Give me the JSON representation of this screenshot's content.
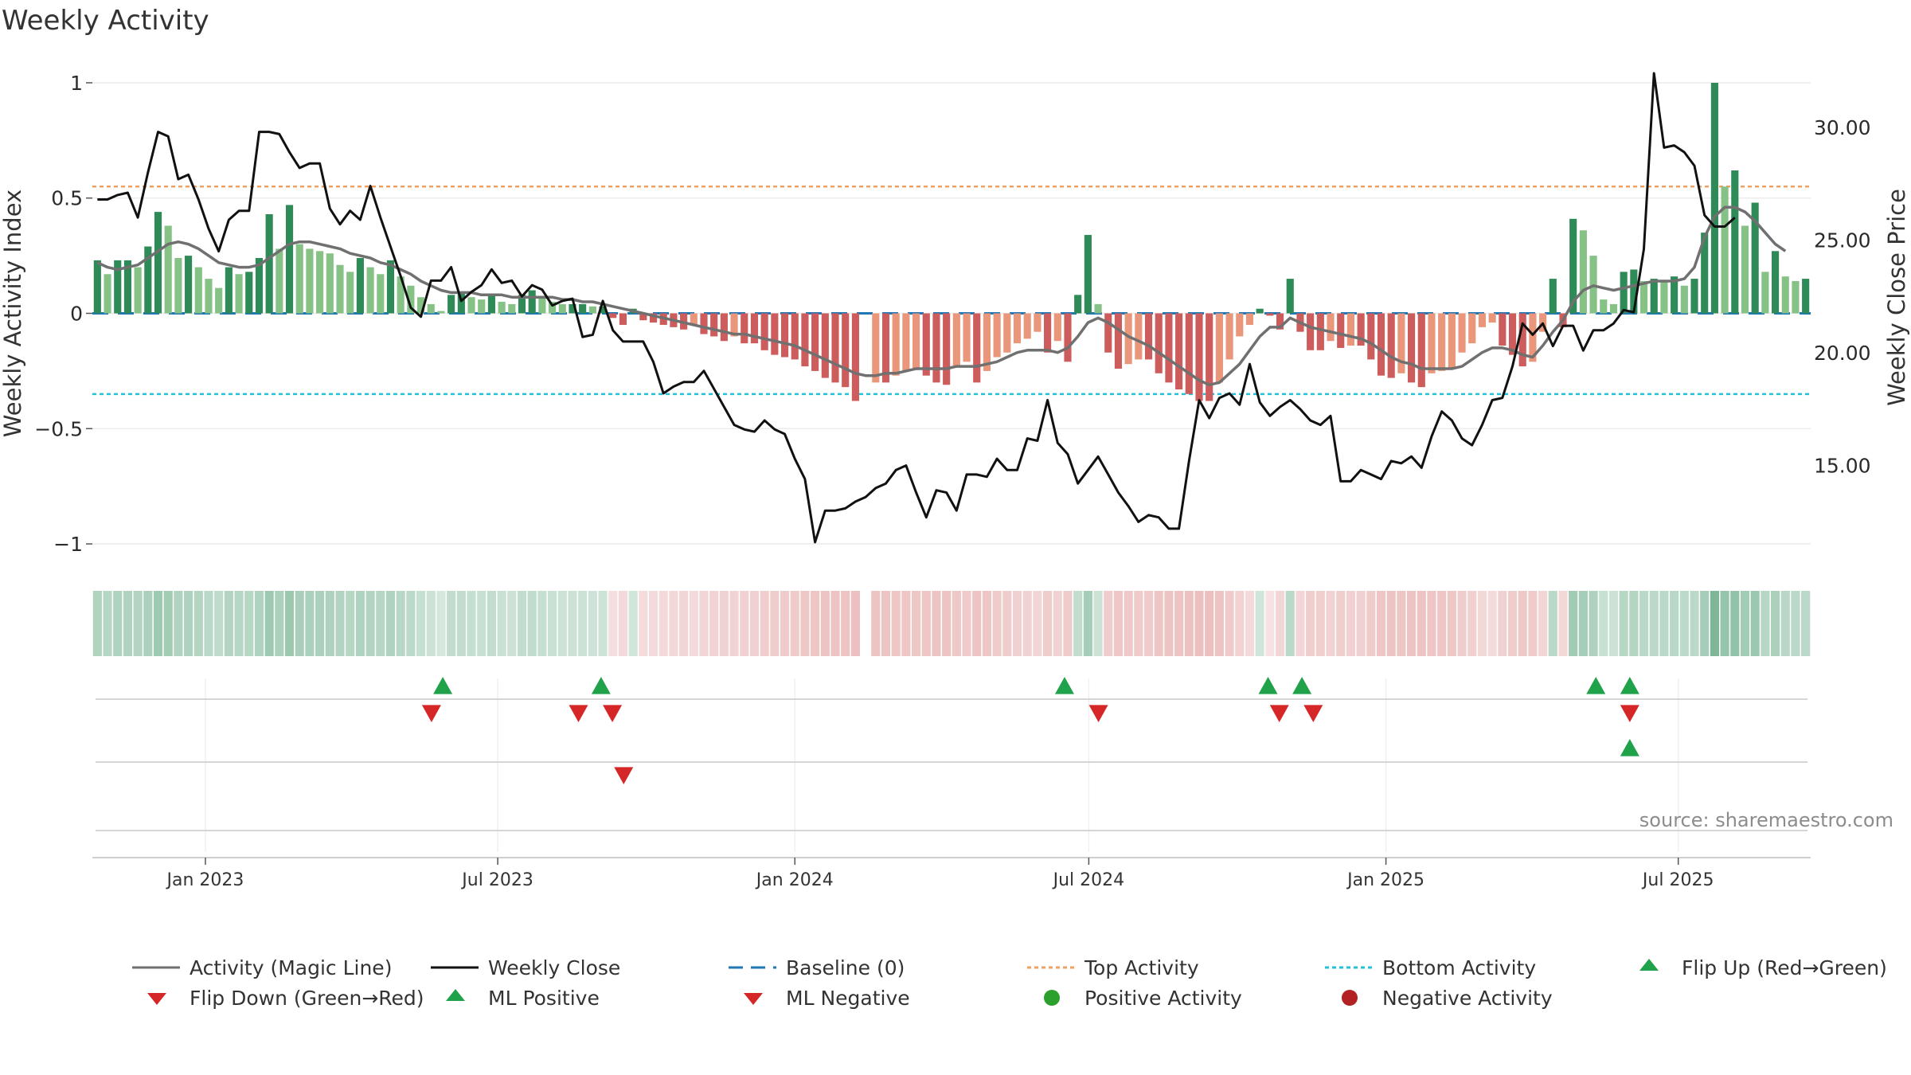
{
  "title": "Weekly Activity",
  "source": "source: sharemaestro.com",
  "colors": {
    "dark_green": "#2e8b57",
    "light_green": "#86c286",
    "dark_red": "#cd5c5c",
    "light_red": "#e9967a",
    "magic_line": "#707070",
    "close_line": "#111111",
    "baseline": "#1f77b4",
    "top_line": "#f0a060",
    "bottom_line": "#22c3d8",
    "flip_up": "#1fa24a",
    "flip_down": "#d62728",
    "pos_dot": "#2ca02c",
    "neg_dot": "#b22222"
  },
  "legend": {
    "items": [
      {
        "label": "Activity (Magic Line)",
        "symbol": "solid-gray-line"
      },
      {
        "label": "Weekly Close",
        "symbol": "solid-black-line"
      },
      {
        "label": "Baseline (0)",
        "symbol": "dashed-blue-line"
      },
      {
        "label": "Top Activity",
        "symbol": "dotted-orange-line"
      },
      {
        "label": "Bottom Activity",
        "symbol": "dotted-cyan-line"
      },
      {
        "label": "Flip Up (Red→Green)",
        "symbol": "green-up-triangle"
      },
      {
        "label": "Flip Down (Green→Red)",
        "symbol": "red-down-triangle"
      },
      {
        "label": "ML Positive",
        "symbol": "green-up-triangle"
      },
      {
        "label": "ML Negative",
        "symbol": "red-down-triangle"
      },
      {
        "label": "Positive Activity",
        "symbol": "green-dot"
      },
      {
        "label": "Negative Activity",
        "symbol": "red-dot"
      }
    ]
  },
  "chart_data": {
    "type": "bar",
    "title": "Weekly Activity",
    "ylabel": "Weekly Activity Index",
    "y2label": "Weekly Close Price",
    "ylim": [
      -1.1,
      1.1
    ],
    "y2lim": [
      10.5,
      33.0
    ],
    "yticks": [
      1,
      0.5,
      0,
      -0.5,
      -1
    ],
    "ytick_labels": [
      "1",
      "0.5",
      "0",
      "−0.5",
      "−1"
    ],
    "y2ticks": [
      30,
      25,
      20,
      15
    ],
    "y2tick_labels": [
      "30.00",
      "25.00",
      "20.00",
      "15.00"
    ],
    "x_date_range": [
      "2022-10-23",
      "2025-09-21"
    ],
    "xticks": [
      {
        "label": "Jan 2023",
        "date": "2023-01-01"
      },
      {
        "label": "Jul 2023",
        "date": "2023-07-01"
      },
      {
        "label": "Jan 2024",
        "date": "2024-01-01"
      },
      {
        "label": "Jul 2024",
        "date": "2024-07-01"
      },
      {
        "label": "Jan 2025",
        "date": "2025-01-01"
      },
      {
        "label": "Jul 2025",
        "date": "2025-07-01"
      }
    ],
    "top_activity": 0.55,
    "bottom_activity": -0.35,
    "baseline": 0,
    "series": [
      {
        "name": "Weekly Activity Index",
        "kind": "bars",
        "values": [
          0.23,
          0.17,
          0.23,
          0.23,
          0.2,
          0.29,
          0.44,
          0.38,
          0.24,
          0.25,
          0.2,
          0.15,
          0.11,
          0.2,
          0.17,
          0.18,
          0.24,
          0.43,
          0.28,
          0.47,
          0.3,
          0.28,
          0.27,
          0.26,
          0.21,
          0.18,
          0.24,
          0.2,
          0.17,
          0.23,
          0.16,
          0.12,
          0.07,
          0.04,
          0.01,
          0.08,
          0.09,
          0.07,
          0.06,
          0.08,
          0.05,
          0.04,
          0.08,
          0.1,
          0.07,
          0.05,
          0.04,
          0.04,
          0.04,
          0.03,
          0.03,
          -0.02,
          -0.05,
          0.02,
          -0.03,
          -0.04,
          -0.05,
          -0.06,
          -0.07,
          -0.05,
          -0.09,
          -0.1,
          -0.12,
          -0.1,
          -0.13,
          -0.13,
          -0.16,
          -0.18,
          -0.19,
          -0.2,
          -0.23,
          -0.25,
          -0.28,
          -0.3,
          -0.32,
          -0.38,
          null,
          -0.3,
          -0.3,
          -0.27,
          -0.25,
          -0.24,
          -0.27,
          -0.3,
          -0.31,
          -0.23,
          -0.21,
          -0.3,
          -0.25,
          -0.19,
          -0.17,
          -0.13,
          -0.11,
          -0.08,
          -0.17,
          -0.12,
          -0.21,
          0.08,
          0.34,
          0.04,
          -0.17,
          -0.24,
          -0.22,
          -0.2,
          -0.2,
          -0.26,
          -0.3,
          -0.33,
          -0.35,
          -0.38,
          -0.38,
          -0.3,
          -0.2,
          -0.1,
          -0.05,
          0.02,
          -0.01,
          -0.07,
          0.15,
          -0.08,
          -0.16,
          -0.16,
          -0.12,
          -0.15,
          -0.14,
          -0.14,
          -0.2,
          -0.27,
          -0.28,
          -0.26,
          -0.3,
          -0.32,
          -0.26,
          -0.25,
          -0.24,
          -0.17,
          -0.13,
          -0.06,
          -0.04,
          -0.14,
          -0.18,
          -0.23,
          -0.21,
          -0.08,
          0.15,
          -0.06,
          0.41,
          0.36,
          0.25,
          0.06,
          0.04,
          0.18,
          0.19,
          0.14,
          0.15,
          0.14,
          0.16,
          0.12,
          0.15,
          0.35,
          1.0,
          0.55,
          0.62,
          0.38,
          0.48,
          0.18,
          0.27,
          0.16,
          0.14,
          0.15
        ]
      },
      {
        "name": "Activity (Magic Line)",
        "kind": "line",
        "values": [
          0.22,
          0.2,
          0.19,
          0.2,
          0.21,
          0.24,
          0.27,
          0.3,
          0.31,
          0.3,
          0.28,
          0.25,
          0.22,
          0.21,
          0.2,
          0.2,
          0.21,
          0.24,
          0.27,
          0.3,
          0.31,
          0.31,
          0.3,
          0.29,
          0.28,
          0.26,
          0.25,
          0.24,
          0.22,
          0.21,
          0.19,
          0.17,
          0.14,
          0.12,
          0.1,
          0.09,
          0.09,
          0.09,
          0.08,
          0.08,
          0.08,
          0.07,
          0.07,
          0.07,
          0.07,
          0.07,
          0.06,
          0.06,
          0.05,
          0.05,
          0.04,
          0.03,
          0.02,
          0.01,
          0.0,
          -0.01,
          -0.02,
          -0.03,
          -0.04,
          -0.05,
          -0.06,
          -0.07,
          -0.08,
          -0.09,
          -0.09,
          -0.1,
          -0.11,
          -0.12,
          -0.13,
          -0.14,
          -0.16,
          -0.18,
          -0.2,
          -0.22,
          -0.24,
          -0.26,
          -0.27,
          -0.27,
          -0.26,
          -0.26,
          -0.25,
          -0.24,
          -0.24,
          -0.24,
          -0.24,
          -0.23,
          -0.23,
          -0.23,
          -0.22,
          -0.21,
          -0.19,
          -0.17,
          -0.16,
          -0.16,
          -0.16,
          -0.17,
          -0.15,
          -0.1,
          -0.04,
          -0.02,
          -0.04,
          -0.07,
          -0.1,
          -0.12,
          -0.14,
          -0.17,
          -0.2,
          -0.23,
          -0.26,
          -0.29,
          -0.31,
          -0.3,
          -0.26,
          -0.22,
          -0.16,
          -0.1,
          -0.06,
          -0.06,
          -0.02,
          -0.04,
          -0.06,
          -0.07,
          -0.08,
          -0.09,
          -0.1,
          -0.11,
          -0.13,
          -0.16,
          -0.19,
          -0.21,
          -0.22,
          -0.24,
          -0.24,
          -0.24,
          -0.24,
          -0.23,
          -0.2,
          -0.17,
          -0.15,
          -0.15,
          -0.16,
          -0.18,
          -0.19,
          -0.14,
          -0.08,
          -0.03,
          0.05,
          0.1,
          0.12,
          0.11,
          0.1,
          0.11,
          0.12,
          0.13,
          0.14,
          0.14,
          0.14,
          0.15,
          0.2,
          0.33,
          0.42,
          0.46,
          0.46,
          0.44,
          0.4,
          0.35,
          0.3,
          0.27
        ]
      },
      {
        "name": "Weekly Close",
        "kind": "line",
        "axis": "y2",
        "values": [
          26.8,
          26.8,
          27.0,
          27.1,
          26.0,
          28.0,
          29.8,
          29.6,
          27.7,
          27.9,
          26.8,
          25.5,
          24.5,
          25.9,
          26.3,
          26.3,
          29.8,
          29.8,
          29.7,
          28.9,
          28.2,
          28.4,
          28.4,
          26.4,
          25.7,
          26.3,
          25.9,
          27.4,
          26.0,
          24.7,
          23.4,
          22.0,
          21.6,
          23.2,
          23.2,
          23.8,
          22.3,
          22.7,
          23.0,
          23.7,
          23.1,
          23.2,
          22.5,
          23.0,
          22.8,
          22.1,
          22.3,
          22.4,
          20.7,
          20.8,
          22.3,
          21.0,
          20.5,
          20.5,
          20.5,
          19.6,
          18.2,
          18.5,
          18.7,
          18.7,
          19.2,
          18.4,
          17.6,
          16.8,
          16.6,
          16.5,
          17.0,
          16.6,
          16.4,
          15.3,
          14.4,
          11.6,
          13.0,
          13.0,
          13.1,
          13.4,
          13.6,
          14.0,
          14.2,
          14.8,
          15.0,
          13.8,
          12.7,
          13.9,
          13.8,
          13.0,
          14.6,
          14.6,
          14.5,
          15.3,
          14.8,
          14.8,
          16.2,
          16.1,
          17.9,
          16.0,
          15.5,
          14.2,
          14.8,
          15.4,
          14.6,
          13.8,
          13.2,
          12.5,
          12.8,
          12.7,
          12.2,
          12.2,
          15.2,
          17.9,
          17.1,
          18.0,
          18.2,
          17.7,
          19.5,
          17.8,
          17.2,
          17.6,
          17.9,
          17.5,
          17.0,
          16.8,
          17.2,
          14.3,
          14.3,
          14.8,
          14.6,
          14.4,
          15.2,
          15.1,
          15.4,
          14.9,
          16.3,
          17.4,
          17.0,
          16.2,
          15.9,
          16.8,
          17.9,
          18.0,
          19.4,
          21.3,
          20.8,
          21.3,
          20.3,
          21.2,
          21.2,
          20.1,
          21.0,
          21.0,
          21.3,
          21.9,
          21.8,
          24.6,
          32.4,
          29.1,
          29.2,
          28.9,
          28.3,
          26.1,
          25.6,
          25.6,
          26.0
        ]
      }
    ],
    "flip_up_markers": [
      "2023-05-28",
      "2023-09-03",
      "2024-06-16",
      "2024-10-20",
      "2024-11-10",
      "2025-05-11",
      "2025-06-01"
    ],
    "flip_down_markers": [
      "2023-05-21",
      "2023-08-20",
      "2023-09-10",
      "2024-07-07",
      "2024-10-27",
      "2024-11-17",
      "2025-06-01"
    ],
    "ml_positive_markers": [
      "2025-06-01"
    ],
    "ml_negative_markers": [
      "2023-09-17"
    ]
  }
}
